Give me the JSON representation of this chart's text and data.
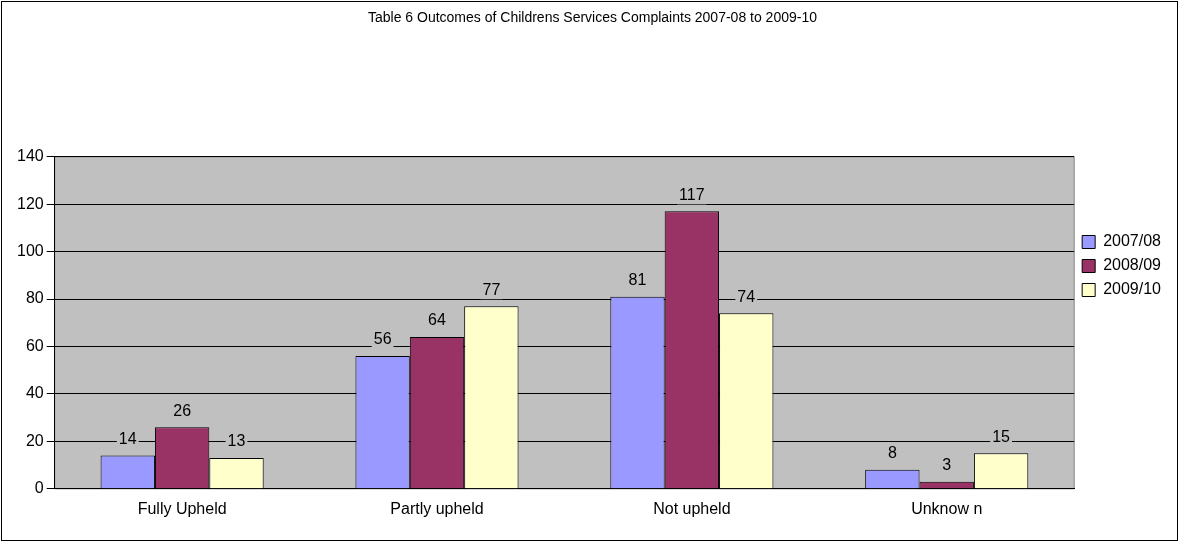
{
  "chart_data": {
    "type": "bar",
    "title": "Table 6 Outcomes of Childrens Services Complaints 2007-08 to 2009-10",
    "categories": [
      "Fully Upheld",
      "Partly upheld",
      "Not upheld",
      "Unknow n"
    ],
    "series": [
      {
        "name": "2007/08",
        "color": "#9999ff",
        "values": [
          14,
          56,
          81,
          8
        ]
      },
      {
        "name": "2008/09",
        "color": "#993366",
        "values": [
          26,
          64,
          117,
          3
        ]
      },
      {
        "name": "2009/10",
        "color": "#ffffcc",
        "values": [
          13,
          77,
          74,
          15
        ]
      }
    ],
    "ylim": [
      0,
      140
    ],
    "yticks": [
      0,
      20,
      40,
      60,
      80,
      100,
      120,
      140
    ],
    "grid": "y",
    "legend": "right",
    "data_labels": true
  }
}
